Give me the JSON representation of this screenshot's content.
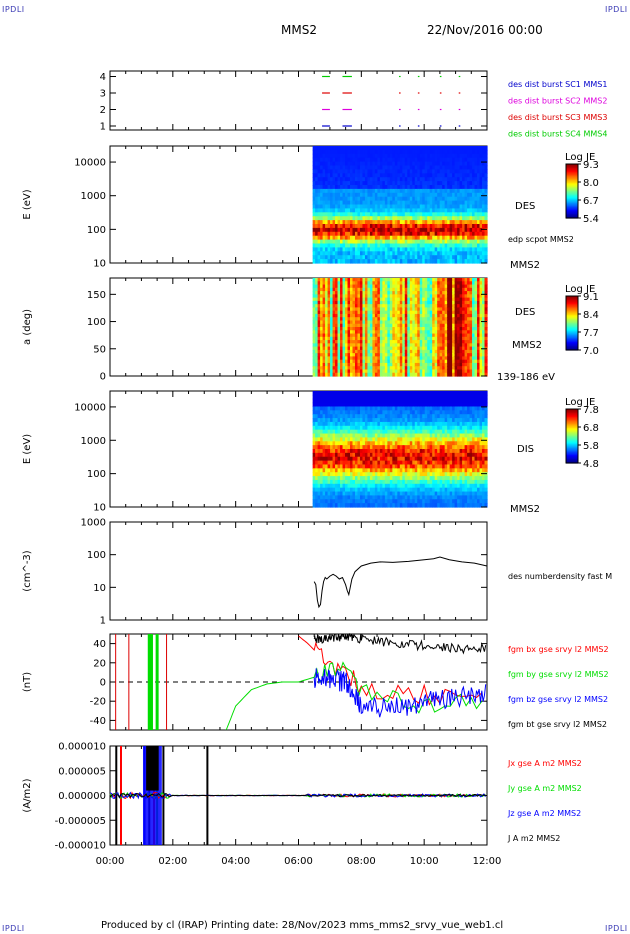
{
  "header": {
    "corner_tl": "IPDLI",
    "corner_tr": "IPDLI",
    "corner_bl": "IPDLI",
    "corner_br": "IPDLI",
    "title": "MMS2",
    "date": "22/Nov/2016 00:00"
  },
  "footer": {
    "text": "Produced by cl (IRAP)   Printing date: 28/Nov/2023   mms_mms2_srvy_vue_web1.cl"
  },
  "colors": {
    "mms1": "#0000cc",
    "mms2": "#dd00dd",
    "mms3": "#dd0000",
    "mms4": "#00cc00",
    "bx": "#ff0000",
    "by": "#00dd00",
    "bz": "#0000ff",
    "bt": "#000000"
  },
  "chart_data": [
    {
      "type": "scatter",
      "panel": "availability",
      "yticks": [
        "1",
        "2",
        "3",
        "4"
      ],
      "legend": [
        {
          "name": "des dist burst SC1 MMS1",
          "color": "#0000cc"
        },
        {
          "name": "des dist burst SC2 MMS2",
          "color": "#dd00dd"
        },
        {
          "name": "des dist burst SC3 MMS3",
          "color": "#dd0000"
        },
        {
          "name": "des dist burst SC4 MMS4",
          "color": "#00cc00"
        }
      ],
      "segments_hours": [
        [
          6.75,
          7.0
        ],
        [
          7.4,
          7.7
        ],
        [
          9.2,
          9.25
        ],
        [
          9.8,
          9.85
        ],
        [
          10.5,
          10.55
        ],
        [
          11.1,
          11.15
        ]
      ]
    },
    {
      "type": "heatmap",
      "panel": "des-energy",
      "ylabel": "E (eV)",
      "yscale": "log",
      "ylim": [
        10,
        30000
      ],
      "yticks": [
        "10",
        "100",
        "1000",
        "10000"
      ],
      "labels": [
        "DES",
        "edp scpot MMS2",
        "MMS2"
      ],
      "colorbar": {
        "title": "Log JE",
        "ticks": [
          "9.3",
          "8.0",
          "6.7",
          "5.4"
        ]
      },
      "data_start_hour": 6.45
    },
    {
      "type": "heatmap",
      "panel": "des-pitch",
      "ylabel": "a (deg)",
      "ylim": [
        0,
        180
      ],
      "yticks": [
        "0",
        "50",
        "100",
        "150"
      ],
      "labels": [
        "DES",
        "MMS2",
        "139-186 eV"
      ],
      "colorbar": {
        "title": "Log JE",
        "ticks": [
          "9.1",
          "8.4",
          "7.7",
          "7.0"
        ]
      },
      "data_start_hour": 6.45
    },
    {
      "type": "heatmap",
      "panel": "dis-energy",
      "ylabel": "E (eV)",
      "yscale": "log",
      "ylim": [
        10,
        30000
      ],
      "yticks": [
        "10",
        "100",
        "1000",
        "10000"
      ],
      "labels": [
        "DIS",
        "MMS2"
      ],
      "colorbar": {
        "title": "Log JE",
        "ticks": [
          "7.8",
          "6.8",
          "5.8",
          "4.8"
        ]
      },
      "data_start_hour": 6.45
    },
    {
      "type": "line",
      "panel": "density",
      "ylabel": "(cm^-3)",
      "yscale": "log",
      "ylim": [
        1,
        1000
      ],
      "yticks": [
        "1",
        "10",
        "100",
        "1000"
      ],
      "series": [
        {
          "name": "des numberdensity fast M",
          "color": "#000000",
          "x": [
            6.5,
            6.55,
            6.6,
            6.65,
            6.7,
            6.75,
            6.8,
            6.85,
            6.9,
            7.0,
            7.1,
            7.2,
            7.3,
            7.4,
            7.5,
            7.55,
            7.6,
            7.7,
            7.8,
            8.0,
            8.3,
            8.6,
            9.0,
            9.5,
            10.0,
            10.3,
            10.5,
            10.8,
            11.2,
            11.6,
            12.0
          ],
          "y": [
            15,
            12,
            4,
            2.5,
            3,
            8,
            15,
            20,
            18,
            22,
            25,
            22,
            18,
            20,
            12,
            8,
            6,
            18,
            30,
            45,
            55,
            60,
            58,
            62,
            70,
            75,
            85,
            70,
            60,
            55,
            45
          ]
        }
      ]
    },
    {
      "type": "line",
      "panel": "magnetic-field",
      "ylabel": "(nT)",
      "ylim": [
        -50,
        50
      ],
      "yticks": [
        "-40",
        "-20",
        "0",
        "20",
        "40"
      ],
      "series": [
        {
          "name": "fgm bx gse srvy l2 MMS2",
          "color": "#ff0000",
          "x": [
            6.0,
            6.3,
            6.6,
            7.0,
            7.5,
            8.0,
            9.0,
            10.0,
            11.0,
            12.0
          ],
          "y": [
            48,
            40,
            30,
            20,
            10,
            -5,
            -10,
            -12,
            -15,
            -10
          ]
        },
        {
          "name": "fgm by gse srvy l2 MMS2",
          "color": "#00dd00",
          "x": [
            3.7,
            4.0,
            4.5,
            5.0,
            5.5,
            6.0,
            6.5,
            7.0,
            7.5,
            8.0,
            9.0,
            10.0,
            11.0,
            12.0
          ],
          "y": [
            -50,
            -25,
            -8,
            -2,
            0,
            0,
            5,
            10,
            15,
            -10,
            -20,
            -25,
            -15,
            -20
          ]
        },
        {
          "name": "fgm bz gse srvy l2 MMS2",
          "color": "#0000ff",
          "x": [
            6.5,
            7.0,
            7.5,
            8.0,
            9.0,
            10.0,
            11.0,
            12.0
          ],
          "y": [
            5,
            3,
            0,
            -25,
            -28,
            -20,
            -15,
            -10
          ]
        },
        {
          "name": "fgm bt gse srvy l2 MMS2",
          "color": "#000000",
          "x": [
            6.5,
            7.0,
            7.5,
            8.0,
            9.0,
            10.0,
            11.0,
            12.0
          ],
          "y": [
            45,
            46,
            48,
            45,
            40,
            38,
            35,
            35
          ]
        }
      ]
    },
    {
      "type": "line",
      "panel": "current-density",
      "ylabel": "(A/m2)",
      "ylim": [
        -1e-05,
        1e-05
      ],
      "yticks": [
        "-0.000010",
        "-0.000005",
        "0.000000",
        "0.000005",
        "0.000010"
      ],
      "series": [
        {
          "name": "Jx gse A m2 MMS2",
          "color": "#ff0000"
        },
        {
          "name": "Jy gse A m2 MMS2",
          "color": "#00dd00"
        },
        {
          "name": "Jz gse A m2 MMS2",
          "color": "#0000ff"
        },
        {
          "name": "J A m2 MMS2",
          "color": "#000000"
        }
      ]
    }
  ],
  "xaxis": {
    "range_hours": [
      0,
      12
    ],
    "ticks": [
      "00:00",
      "02:00",
      "04:00",
      "06:00",
      "08:00",
      "10:00",
      "12:00"
    ]
  }
}
